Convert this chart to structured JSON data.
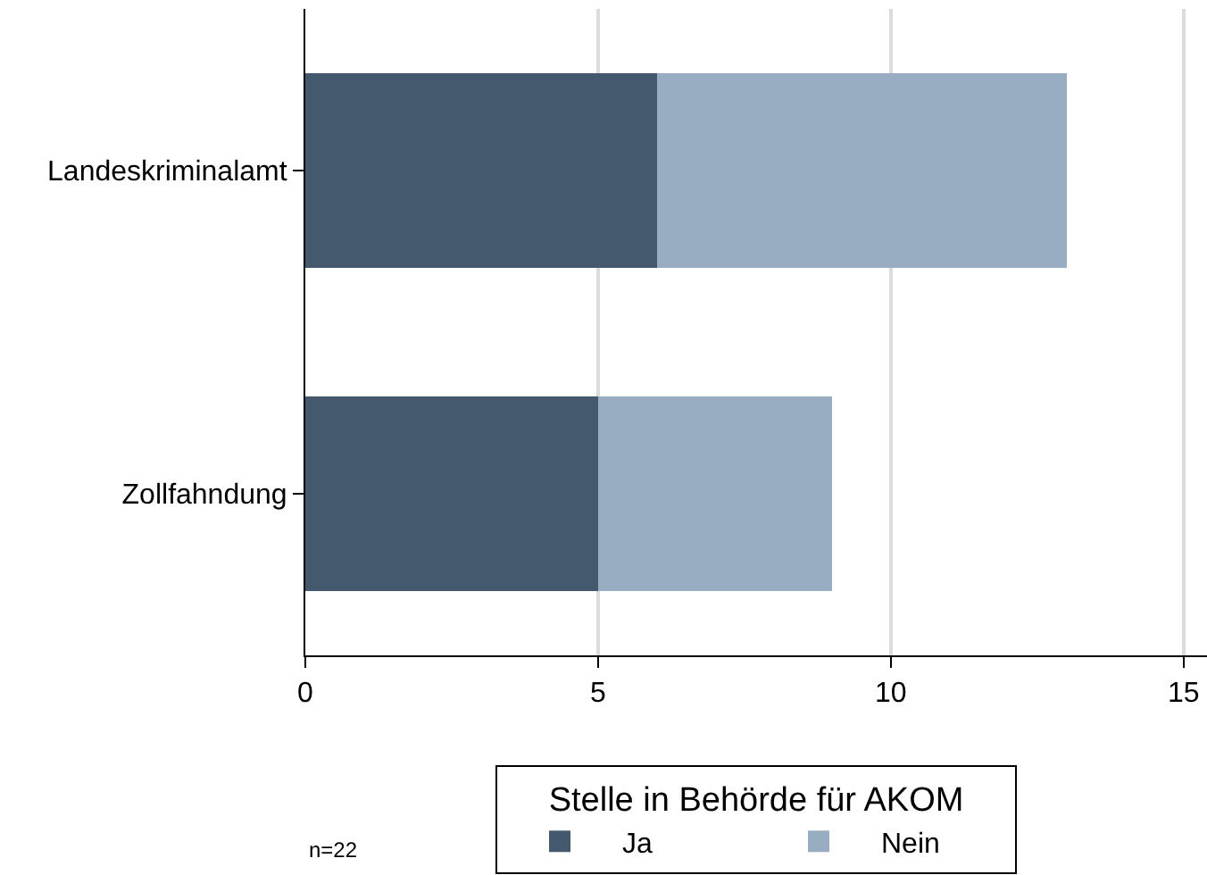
{
  "chart_data": {
    "type": "bar",
    "orientation": "horizontal",
    "stacked": true,
    "categories": [
      "Landeskriminalamt",
      "Zollfahndung"
    ],
    "series": [
      {
        "name": "Ja",
        "color": "#44596e",
        "values": [
          6,
          5
        ]
      },
      {
        "name": "Nein",
        "color": "#98adc1",
        "values": [
          7,
          4
        ]
      }
    ],
    "xlim": [
      0,
      15.4
    ],
    "xticks": [
      0,
      5,
      10,
      15
    ],
    "grid": "x",
    "legend": "bottom",
    "legend_title": "Stelle in Behörde für AKOM",
    "annotations": [
      "n=22"
    ]
  }
}
